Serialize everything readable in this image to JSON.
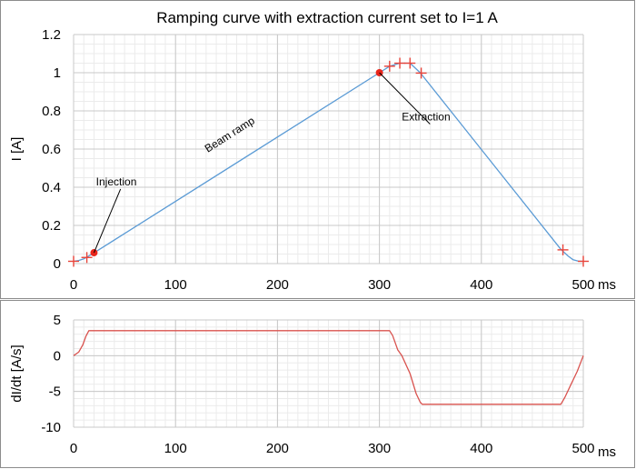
{
  "chart_data": [
    {
      "type": "line",
      "title": "Ramping curve with extraction current set to I=1 A",
      "xlabel": "",
      "ylabel": "I [A]",
      "x_unit": "ms",
      "xlim": [
        0,
        500
      ],
      "ylim": [
        0,
        1.2
      ],
      "xticks": [
        0,
        100,
        200,
        300,
        400,
        500
      ],
      "yticks": [
        0,
        0.2,
        0.4,
        0.6,
        0.8,
        1,
        1.2
      ],
      "xtick_labels": [
        "0",
        "100",
        "200",
        "300",
        "400",
        "500"
      ],
      "ytick_labels": [
        "0",
        "0.2",
        "0.4",
        "0.6",
        "0.8",
        "1",
        "1.2"
      ],
      "grid": true,
      "series": [
        {
          "color": "#5b9bd5",
          "x": [
            0,
            5,
            10,
            15,
            20,
            300,
            310,
            320,
            330,
            340,
            478,
            485,
            490,
            495,
            500
          ],
          "y": [
            0.012,
            0.016,
            0.025,
            0.04,
            0.056,
            1.0,
            1.034,
            1.05,
            1.05,
            1.0,
            0.075,
            0.04,
            0.02,
            0.013,
            0.012
          ]
        }
      ],
      "markers": {
        "style": "plus",
        "color": "#e8443a",
        "x": [
          0,
          13,
          310,
          320,
          330,
          341,
          480,
          500
        ],
        "y": [
          0.012,
          0.032,
          1.034,
          1.05,
          1.05,
          0.998,
          0.072,
          0.012
        ]
      },
      "highlight_points": [
        {
          "x": 20,
          "y": 0.057,
          "color": "#e8251b"
        },
        {
          "x": 300,
          "y": 1.0,
          "color": "#e8251b"
        }
      ],
      "annotations": [
        {
          "text": "Injection",
          "x": 20,
          "y": 0.057,
          "label_x": 22,
          "label_y": 0.41
        },
        {
          "text": "Extraction",
          "x": 300,
          "y": 1.0,
          "label_x": 322,
          "label_y": 0.75
        },
        {
          "text": "Beam ramp",
          "x": 155,
          "y": 0.66,
          "rotated": true
        }
      ]
    },
    {
      "type": "line",
      "title": "",
      "xlabel": "",
      "ylabel": "dI/dt [A/s]",
      "x_unit": "ms",
      "xlim": [
        0,
        500
      ],
      "ylim": [
        -10,
        5
      ],
      "xticks": [
        0,
        100,
        200,
        300,
        400,
        500
      ],
      "yticks": [
        -10,
        -5,
        0,
        5
      ],
      "xtick_labels": [
        "0",
        "100",
        "200",
        "300",
        "400",
        "500"
      ],
      "ytick_labels": [
        "-10",
        "-5",
        "0",
        "5"
      ],
      "grid": true,
      "series": [
        {
          "color": "#d9534f",
          "x": [
            0,
            5,
            9,
            12,
            15,
            310,
            313,
            318,
            322,
            330,
            336,
            340,
            342,
            478,
            482,
            488,
            494,
            500
          ],
          "y": [
            0,
            0.5,
            1.5,
            2.7,
            3.5,
            3.5,
            2.8,
            0.8,
            0,
            -2.5,
            -5.3,
            -6.5,
            -6.8,
            -6.8,
            -5.8,
            -4.0,
            -2.2,
            0
          ]
        }
      ]
    }
  ]
}
